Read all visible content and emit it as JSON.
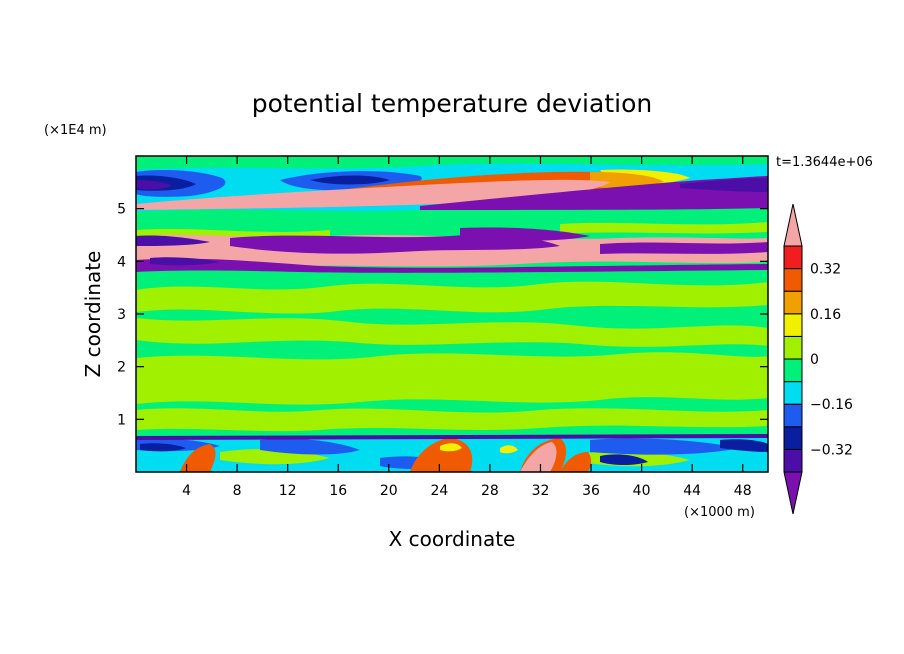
{
  "chart_data": {
    "type": "heatmap",
    "title": "potential temperature deviation",
    "time_label": "t=1.3644e+06",
    "xlabel": "X coordinate",
    "ylabel": "Z coordinate",
    "x_unit": "(×1000 m)",
    "y_unit": "(×1E4 m)",
    "xlim": [
      0,
      50
    ],
    "ylim": [
      0,
      6
    ],
    "x_ticks": [
      4,
      8,
      12,
      16,
      20,
      24,
      28,
      32,
      36,
      40,
      44,
      48
    ],
    "y_ticks": [
      1,
      2,
      3,
      4,
      5
    ],
    "colorbar": {
      "levels": [
        -0.4,
        -0.32,
        -0.24,
        -0.16,
        -0.08,
        0,
        0.08,
        0.16,
        0.24,
        0.32,
        0.4
      ],
      "tick_labels": [
        "0.32",
        "0.16",
        "0",
        "−0.16",
        "−0.32"
      ],
      "tick_values": [
        0.32,
        0.16,
        0,
        -0.16,
        -0.32
      ],
      "colors": [
        "#7a10b0",
        "#4b0fa8",
        "#0a1ea0",
        "#1e5cf0",
        "#00dcf0",
        "#00f07a",
        "#a0f000",
        "#f0f000",
        "#f0a000",
        "#f05a00",
        "#f01e1e",
        "#f4a6a6"
      ]
    }
  }
}
